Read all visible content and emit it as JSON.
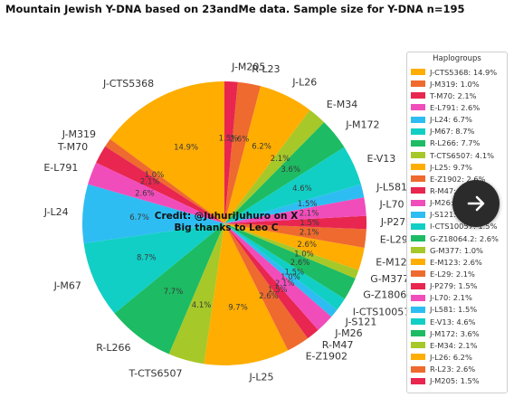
{
  "chart_data": {
    "type": "pie",
    "title": "Mountain Jewish Y-DNA based on 23andMe data. Sample size for Y-DNA n=195",
    "legend_title": "Haplogroups",
    "legend_position": "right",
    "credit_lines": [
      "Credit: @JuhuriJuhuro on X",
      "Big thanks to Leo C"
    ],
    "slices": [
      {
        "label": "J-CTS5368",
        "legend": "J-CTS5368: 14.9%",
        "pct_label": "14.9%",
        "value": 14.9,
        "color": "#ffad00"
      },
      {
        "label": "J-M319",
        "legend": "J-M319: 1.0%",
        "pct_label": "1.0%",
        "value": 1.0,
        "color": "#ef6a2e"
      },
      {
        "label": "T-M70",
        "legend": "T-M70: 2.1%",
        "pct_label": "2.1%",
        "value": 2.1,
        "color": "#e8264f"
      },
      {
        "label": "E-L791",
        "legend": "E-L791: 2.6%",
        "pct_label": "2.6%",
        "value": 2.6,
        "color": "#f04dbb"
      },
      {
        "label": "J-L24",
        "legend": "J-L24: 6.7%",
        "pct_label": "6.7%",
        "value": 6.7,
        "color": "#2ebdf2"
      },
      {
        "label": "J-M67",
        "legend": "J-M67: 8.7%",
        "pct_label": "8.7%",
        "value": 8.7,
        "color": "#11cfc5"
      },
      {
        "label": "R-L266",
        "legend": "R-L266: 7.7%",
        "pct_label": "7.7%",
        "value": 7.7,
        "color": "#1dbb63"
      },
      {
        "label": "T-CTS6507",
        "legend": "T-CTS6507: 4.1%",
        "pct_label": "4.1%",
        "value": 4.1,
        "color": "#a6c828"
      },
      {
        "label": "J-L25",
        "legend": "J-L25: 9.7%",
        "pct_label": "9.7%",
        "value": 9.7,
        "color": "#ffad00"
      },
      {
        "label": "E-Z1902",
        "legend": "E-Z1902: 2.6%",
        "pct_label": "2.6%",
        "value": 2.6,
        "color": "#ef6a2e"
      },
      {
        "label": "R-M47",
        "legend": "R-M47: 1.5%",
        "pct_label": "1.5%",
        "value": 1.5,
        "color": "#e8264f"
      },
      {
        "label": "J-M26",
        "legend": "J-M26: 2.1%",
        "pct_label": "2.1%",
        "value": 2.1,
        "color": "#f04dbb"
      },
      {
        "label": "J-S121",
        "legend": "J-S121: 1.0%",
        "pct_label": "1.0%",
        "value": 1.0,
        "color": "#2ebdf2"
      },
      {
        "label": "I-CTS10057",
        "legend": "I-CTS10057: 1.5%",
        "pct_label": "1.5%",
        "value": 1.5,
        "color": "#11cfc5"
      },
      {
        "label": "G-Z18064.2",
        "legend": "G-Z18064.2: 2.6%",
        "pct_label": "2.6%",
        "value": 2.6,
        "color": "#1dbb63"
      },
      {
        "label": "G-M377",
        "legend": "G-M377: 1.0%",
        "pct_label": "1.0%",
        "value": 1.0,
        "color": "#a6c828"
      },
      {
        "label": "E-M123",
        "legend": "E-M123: 2.6%",
        "pct_label": "2.6%",
        "value": 2.6,
        "color": "#ffad00"
      },
      {
        "label": "E-L29",
        "legend": "E-L29: 2.1%",
        "pct_label": "2.1%",
        "value": 2.1,
        "color": "#ef6a2e"
      },
      {
        "label": "J-P279",
        "legend": "J-P279: 1.5%",
        "pct_label": "1.5%",
        "value": 1.5,
        "color": "#e8264f"
      },
      {
        "label": "J-L70",
        "legend": "J-L70: 2.1%",
        "pct_label": "2.1%",
        "value": 2.1,
        "color": "#f04dbb"
      },
      {
        "label": "J-L581",
        "legend": "J-L581: 1.5%",
        "pct_label": "1.5%",
        "value": 1.5,
        "color": "#2ebdf2"
      },
      {
        "label": "E-V13",
        "legend": "E-V13: 4.6%",
        "pct_label": "4.6%",
        "value": 4.6,
        "color": "#11cfc5"
      },
      {
        "label": "J-M172",
        "legend": "J-M172: 3.6%",
        "pct_label": "3.6%",
        "value": 3.6,
        "color": "#1dbb63"
      },
      {
        "label": "E-M34",
        "legend": "E-M34: 2.1%",
        "pct_label": "2.1%",
        "value": 2.1,
        "color": "#a6c828"
      },
      {
        "label": "J-L26",
        "legend": "J-L26: 6.2%",
        "pct_label": "6.2%",
        "value": 6.2,
        "color": "#ffad00"
      },
      {
        "label": "R-L23",
        "legend": "R-L23: 2.6%",
        "pct_label": "2.6%",
        "value": 2.6,
        "color": "#ef6a2e"
      },
      {
        "label": "J-M205",
        "legend": "J-M205: 1.5%",
        "pct_label": "1.5%",
        "value": 1.5,
        "color": "#e8264f"
      }
    ]
  },
  "ui": {
    "next_button_icon": "arrow-right-icon"
  }
}
